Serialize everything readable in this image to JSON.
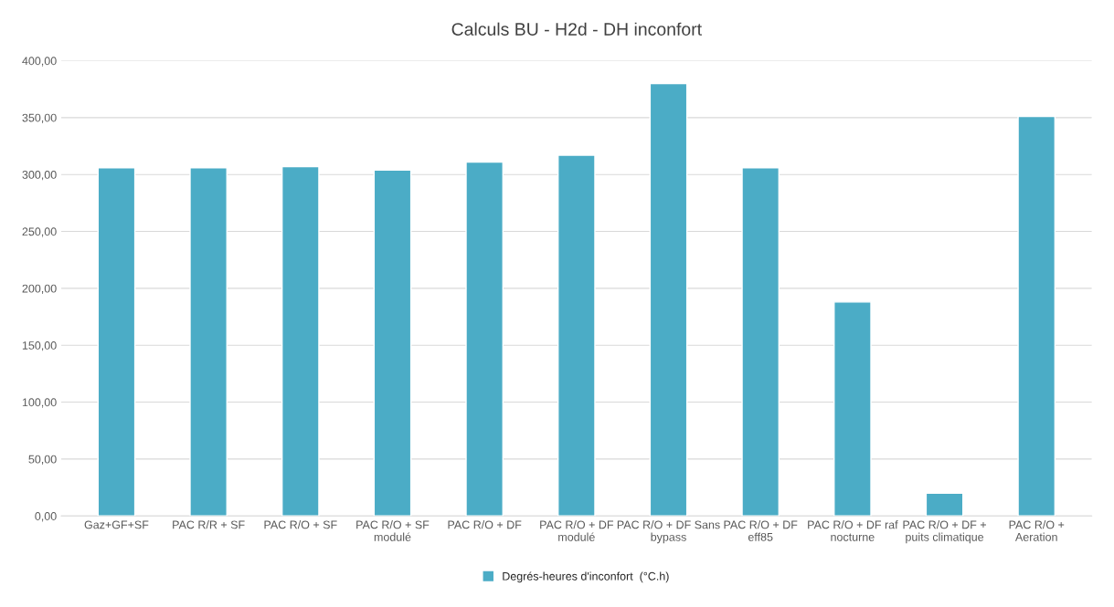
{
  "chart_data": {
    "type": "bar",
    "title": "Calculs BU - H2d - DH inconfort",
    "categories": [
      "Gaz+GF+SF",
      "PAC R/R + SF",
      "PAC R/O + SF",
      "PAC R/O + SF\nmodulé",
      "PAC R/O + DF",
      "PAC R/O + DF\nmodulé",
      "PAC R/O + DF Sans\nbypass",
      "PAC R/O + DF\neff85",
      "PAC R/O + DF raf\nnocturne",
      "PAC R/O + DF +\npuits climatique",
      "PAC R/O +\nAeration"
    ],
    "series": [
      {
        "name": "Degrés-heures d'inconfort  (°C.h)",
        "color": "#4bacc6",
        "values": [
          306,
          306,
          307,
          304,
          311,
          317,
          380,
          306,
          188,
          20,
          351
        ]
      }
    ],
    "ylim": [
      0,
      400
    ],
    "yticks": [
      {
        "value": 0,
        "label": "0,00"
      },
      {
        "value": 50,
        "label": "50,00"
      },
      {
        "value": 100,
        "label": "100,00"
      },
      {
        "value": 150,
        "label": "150,00"
      },
      {
        "value": 200,
        "label": "200,00"
      },
      {
        "value": 250,
        "label": "250,00"
      },
      {
        "value": 300,
        "label": "300,00"
      },
      {
        "value": 350,
        "label": "350,00"
      },
      {
        "value": 400,
        "label": "400,00"
      }
    ],
    "grid": "y",
    "legend": "bottom"
  }
}
